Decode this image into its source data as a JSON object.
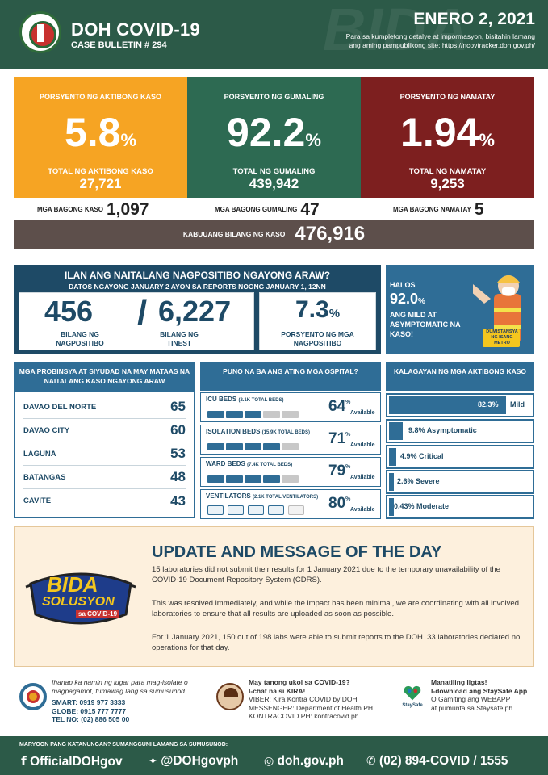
{
  "header": {
    "title": "DOH COVID-19",
    "subtitle": "CASE BULLETIN # 294",
    "date": "ENERO 2, 2021",
    "note": "Para sa kumpletong detalye at impormasyon, bisitahin lamang ang aming pampublikong site: https://ncovtracker.doh.gov.ph/",
    "watermark": "BIDA"
  },
  "cards": [
    {
      "label": "PORSYENTO NG AKTIBONG KASO",
      "value": "5.8",
      "unit": "%",
      "total_label": "TOTAL NG AKTIBONG KASO",
      "total": "27,721",
      "color": "#f6a423"
    },
    {
      "label": "PORSYENTO NG GUMALING",
      "value": "92.2",
      "unit": "%",
      "total_label": "TOTAL NG GUMALING",
      "total": "439,942",
      "color": "#2d6a52"
    },
    {
      "label": "PORSYENTO NG NAMATAY",
      "value": "1.94",
      "unit": "%",
      "total_label": "TOTAL NG NAMATAY",
      "total": "9,253",
      "color": "#7d1f1f"
    }
  ],
  "new_counts": [
    {
      "label": "MGA BAGONG KASO",
      "value": "1,097"
    },
    {
      "label": "MGA BAGONG GUMALING",
      "value": "47"
    },
    {
      "label": "MGA BAGONG NAMATAY",
      "value": "5"
    }
  ],
  "total_cases": {
    "label": "KABUUANG BILANG NG KASO",
    "value": "476,916"
  },
  "positivity": {
    "title": "ILAN ANG NAITALANG NAGPOSITIBO NGAYONG ARAW?",
    "subtitle": "DATOS NGAYONG JANUARY 2 AYON SA REPORTS NOONG JANUARY 1, 12NN",
    "positive": "456",
    "positive_label": "BILANG NG NAGPOSITIBO",
    "tested": "6,227",
    "tested_label": "BILANG NG TINEST",
    "rate": "7.3",
    "rate_unit": "%",
    "rate_label": "PORSYENTO NG MGA NAGPOSITIBO"
  },
  "halos": {
    "prefix": "HALOS",
    "value": "92.0",
    "unit": "%",
    "text": "ANG MILD AT ASYMPTOMATIC NA KASO!",
    "sign": "DUMISTANSYA NG ISANG METRO"
  },
  "provinces": {
    "title": "MGA PROBINSYA AT SIYUDAD NA MAY MATAAS NA NAITALANG KASO NGAYONG ARAW",
    "items": [
      {
        "name": "DAVAO DEL NORTE",
        "value": "65"
      },
      {
        "name": "DAVAO CITY",
        "value": "60"
      },
      {
        "name": "LAGUNA",
        "value": "53"
      },
      {
        "name": "BATANGAS",
        "value": "48"
      },
      {
        "name": "CAVITE",
        "value": "43"
      }
    ]
  },
  "hospitals": {
    "title": "PUNO NA BA ANG ATING MGA OSPITAL?",
    "available_label": "Available",
    "items": [
      {
        "name": "ICU BEDS",
        "note": "(2.1K TOTAL BEDS)",
        "pct": "64",
        "available": 0.64,
        "unit": "%"
      },
      {
        "name": "ISOLATION BEDS",
        "note": "(15.9K TOTAL BEDS)",
        "pct": "71",
        "available": 0.71,
        "unit": "%"
      },
      {
        "name": "WARD BEDS",
        "note": "(7.4K TOTAL BEDS)",
        "pct": "79",
        "available": 0.79,
        "unit": "%"
      },
      {
        "name": "VENTILATORS",
        "note": "(2.1K TOTAL VENTILATORS)",
        "pct": "80",
        "available": 0.8,
        "unit": "%"
      }
    ]
  },
  "status": {
    "title": "KALAGAYAN NG MGA AKTIBONG KASO",
    "items": [
      {
        "pct": "82.3%",
        "label": "Mild",
        "value": 82.3
      },
      {
        "pct": "9.8%",
        "label": "Asymptomatic",
        "value": 9.8
      },
      {
        "pct": "4.9%",
        "label": "Critical",
        "value": 4.9
      },
      {
        "pct": "2.6%",
        "label": "Severe",
        "value": 2.6
      },
      {
        "pct": "0.43%",
        "label": "Moderate",
        "value": 0.43
      }
    ]
  },
  "update": {
    "title": "UPDATE AND MESSAGE OF THE DAY",
    "p1": "15 laboratories did not submit their results for 1 January 2021 due to the temporary unavailability of the COVID-19 Document Repository System (CDRS).",
    "p2": "This was resolved immediately, and while the impact has been minimal, we are coordinating with all involved laboratories to ensure that all results are uploaded as soon as possible.",
    "p3": "For 1 January 2021, 150 out of 198 labs were able to submit reports to the DOH. 33 laboratories declared no operations for that day.",
    "bida_1": "BIDA",
    "bida_2": "SOLUSYON",
    "bida_3": "sa COVID-19"
  },
  "hotline": {
    "text": "Ihanap ka namin ng lugar para mag-isolate o magpagamot, tumawag lang sa sumusunod:",
    "smart": "SMART: 0919 977 3333",
    "globe": "GLOBE: 0915 777 7777",
    "tel": "TEL NO: (02) 886 505 00"
  },
  "kira": {
    "q": "May tanong ukol sa COVID-19?",
    "c": "I-chat na si KIRA!",
    "viber": "VIBER: Kira Kontra COVID by DOH",
    "messenger": "MESSENGER: Department of Health PH",
    "kontra": "KONTRACOVID PH: kontracovid.ph"
  },
  "staysafe": {
    "a": "Manatiling ligtas!",
    "b": "I-download ang StaySafe App",
    "c": "O Gamiting ang WEBAPP",
    "d": "at pumunta sa Staysafe.ph",
    "logo": "StaySafe"
  },
  "footer": {
    "question": "MARYOON PANG KATANUNGAN? SUMANGGUNI LAMANG SA SUMUSUNOD:",
    "facebook": "OfficialDOHgov",
    "twitter": "@DOHgovph",
    "web": "doh.gov.ph",
    "phone": "(02) 894-COVID / 1555"
  }
}
